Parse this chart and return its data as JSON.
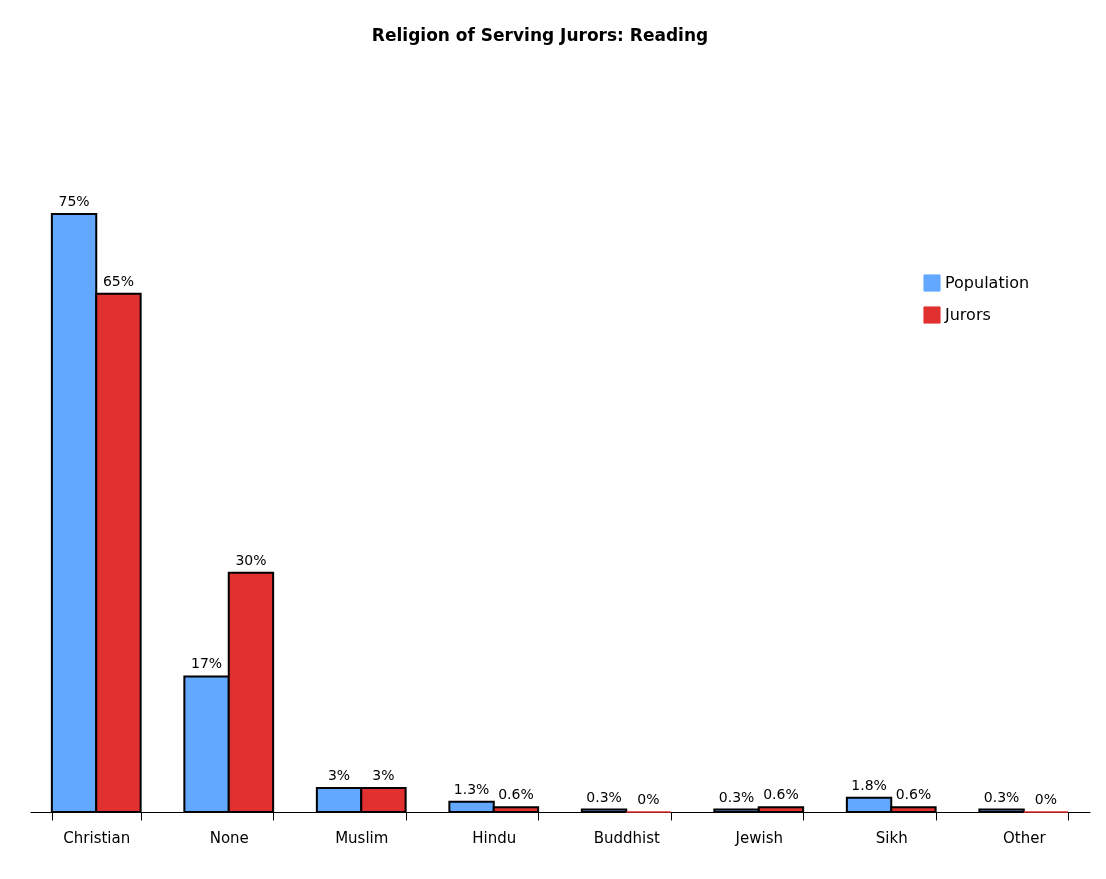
{
  "chart_data": {
    "type": "bar",
    "title": "Religion of Serving Jurors: Reading",
    "categories": [
      "Christian",
      "None",
      "Muslim",
      "Hindu",
      "Buddhist",
      "Jewish",
      "Sikh",
      "Other"
    ],
    "series": [
      {
        "name": "Population",
        "color": "#62a8ff",
        "values": [
          75,
          17,
          3,
          1.3,
          0.3,
          0.3,
          1.8,
          0.3
        ],
        "value_labels": [
          "75%",
          "17%",
          "3%",
          "1.3%",
          "0.3%",
          "0.3%",
          "1.8%",
          "0.3%"
        ]
      },
      {
        "name": "Jurors",
        "color": "#e03030",
        "values": [
          65,
          30,
          3,
          0.6,
          0,
          0.6,
          0.6,
          0
        ],
        "value_labels": [
          "65%",
          "30%",
          "3%",
          "0.6%",
          "0%",
          "0.6%",
          "0.6%",
          "0%"
        ]
      }
    ],
    "legend": "top right",
    "grid": false
  }
}
